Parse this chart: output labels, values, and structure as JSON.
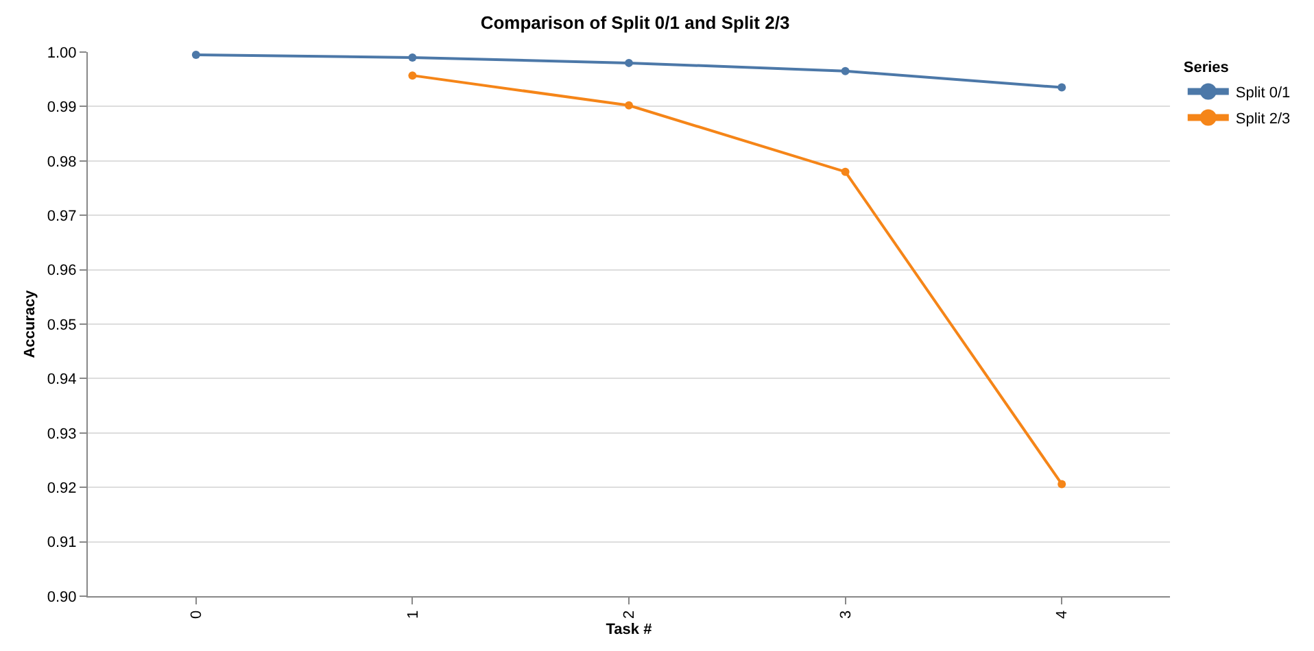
{
  "chart_data": {
    "type": "line",
    "title": "Comparison of Split 0/1 and Split 2/3",
    "xlabel": "Task #",
    "ylabel": "Accuracy",
    "legend_title": "Series",
    "categories": [
      "0",
      "1",
      "2",
      "3",
      "4"
    ],
    "series": [
      {
        "name": "Split 0/1",
        "color": "#4c78a8",
        "values": [
          0.9995,
          0.999,
          0.998,
          0.9965,
          0.9935
        ]
      },
      {
        "name": "Split 2/3",
        "color": "#f58518",
        "values": [
          null,
          0.9957,
          0.9902,
          0.978,
          0.9206
        ]
      }
    ],
    "ylim": [
      0.9,
      1.0
    ],
    "yticks": [
      {
        "value": 0.9,
        "label": "0.90"
      },
      {
        "value": 0.91,
        "label": "0.91"
      },
      {
        "value": 0.92,
        "label": "0.92"
      },
      {
        "value": 0.93,
        "label": "0.93"
      },
      {
        "value": 0.94,
        "label": "0.94"
      },
      {
        "value": 0.95,
        "label": "0.95"
      },
      {
        "value": 0.96,
        "label": "0.96"
      },
      {
        "value": 0.97,
        "label": "0.97"
      },
      {
        "value": 0.98,
        "label": "0.98"
      },
      {
        "value": 0.99,
        "label": "0.99"
      },
      {
        "value": 1.0,
        "label": "1.00"
      }
    ],
    "grid": "y",
    "legend": "top right",
    "marker": "circle",
    "line_style": "solid"
  }
}
